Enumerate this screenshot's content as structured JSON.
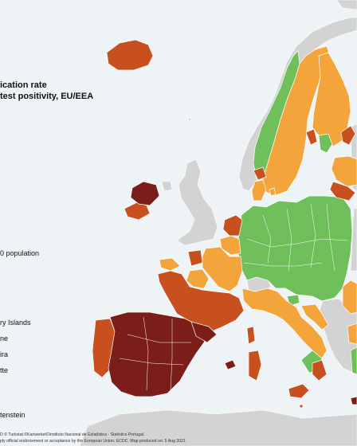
{
  "map": {
    "title_line1": "ication rate",
    "title_line2": " test positivity, EU/EEA",
    "legend_population": "0 population",
    "legend_items": [
      "ry Islands",
      "ne",
      "ira",
      "tte",
      "tenstein"
    ],
    "colors": {
      "sea": "#eef3f6",
      "non_eu": "#d3d3d3",
      "green": "#6fc05a",
      "orange": "#f3a43a",
      "red": "#c8501e",
      "dark_red": "#7b1e1a",
      "border": "#ffffff"
    }
  },
  "footer": {
    "line1": "D © Turkstat.©Kartverket©Instituto Nacional de Estatística - Statistics Portugal.",
    "line2": "ply official endorsement or acceptance by the European Union. ECDC. Map produced on: 5 Aug 2021"
  }
}
